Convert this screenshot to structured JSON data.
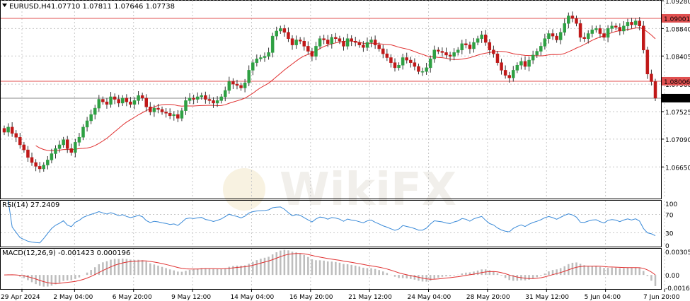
{
  "header": {
    "symbol_label": "EURUSD,H4",
    "ohlc_label": "1.07710 1.07811 1.07646 1.07738"
  },
  "watermark": {
    "text": "WikiFX"
  },
  "chart_data": [
    {
      "type": "candlestick",
      "symbol": "EURUSD",
      "timeframe": "H4",
      "last_bar": {
        "open": 1.0771,
        "high": 1.07811,
        "low": 1.07646,
        "close": 1.07738
      },
      "ylim": [
        1.0615,
        1.0928
      ],
      "y_ticks": [
        "1.09280",
        "1.08840",
        "1.08405",
        "1.07960",
        "1.07525",
        "1.07090",
        "1.06650"
      ],
      "x_ticks": [
        "29 Apr 2024",
        "2 May 04:00",
        "6 May 20:00",
        "9 May 12:00",
        "14 May 04:00",
        "16 May 20:00",
        "21 May 12:00",
        "24 May 04:00",
        "28 May 20:00",
        "31 May 12:00",
        "5 Jun 04:00",
        "7 Jun 20:00"
      ],
      "horizontal_levels": [
        {
          "value": 1.09001,
          "label": "1.09001",
          "color": "#e05050"
        },
        {
          "value": 1.08006,
          "label": "1.08006",
          "color": "#e05050"
        },
        {
          "value": 1.07738,
          "label": "1.07738",
          "color": "#888888",
          "label_bg": "#000000"
        }
      ],
      "moving_average_color": "#e03030",
      "bull_color": "#2ea043",
      "bear_color": "#c01818",
      "closes": [
        1.072,
        1.0728,
        1.0718,
        1.0712,
        1.07,
        1.0692,
        1.068,
        1.0672,
        1.0666,
        1.0662,
        1.0668,
        1.0676,
        1.0686,
        1.0694,
        1.07,
        1.0708,
        1.0694,
        1.0688,
        1.0704,
        1.0712,
        1.0728,
        1.0738,
        1.0748,
        1.0758,
        1.0772,
        1.0768,
        1.0764,
        1.0776,
        1.0772,
        1.0766,
        1.0774,
        1.0768,
        1.0764,
        1.077,
        1.0778,
        1.0774,
        1.076,
        1.0752,
        1.0758,
        1.0756,
        1.0752,
        1.075,
        1.0746,
        1.0748,
        1.0742,
        1.0754,
        1.077,
        1.0774,
        1.0772,
        1.0776,
        1.0778,
        1.0772,
        1.077,
        1.0766,
        1.077,
        1.0776,
        1.0786,
        1.08,
        1.0796,
        1.0794,
        1.079,
        1.0798,
        1.0818,
        1.083,
        1.0836,
        1.0838,
        1.084,
        1.0846,
        1.0872,
        1.088,
        1.0884,
        1.0878,
        1.0868,
        1.0858,
        1.0866,
        1.0864,
        1.0856,
        1.0848,
        1.084,
        1.0856,
        1.0868,
        1.0866,
        1.086,
        1.087,
        1.0868,
        1.0864,
        1.0856,
        1.0868,
        1.0864,
        1.0862,
        1.0858,
        1.0854,
        1.0862,
        1.0866,
        1.0858,
        1.0852,
        1.0844,
        1.0838,
        1.083,
        1.0822,
        1.0826,
        1.0838,
        1.0834,
        1.083,
        1.0824,
        1.0816,
        1.0816,
        1.0822,
        1.0836,
        1.085,
        1.0848,
        1.0846,
        1.0842,
        1.084,
        1.0846,
        1.085,
        1.086,
        1.0858,
        1.0852,
        1.0862,
        1.0868,
        1.0874,
        1.0862,
        1.085,
        1.0844,
        1.083,
        1.0818,
        1.081,
        1.0806,
        1.0818,
        1.0826,
        1.0832,
        1.0824,
        1.0834,
        1.0842,
        1.0848,
        1.0856,
        1.0868,
        1.0876,
        1.0872,
        1.0866,
        1.0878,
        1.0892,
        1.0904,
        1.09,
        1.0892,
        1.087,
        1.0868,
        1.0876,
        1.0882,
        1.0884,
        1.0876,
        1.087,
        1.0884,
        1.0888,
        1.0886,
        1.088,
        1.0888,
        1.0894,
        1.089,
        1.0896,
        1.0888,
        1.085,
        1.0812,
        1.08,
        1.07738
      ],
      "rsi": {
        "label": "RSI(14) 27.2409",
        "y_ticks": [
          "100",
          "70",
          "30",
          "0"
        ],
        "levels": [
          70,
          30
        ],
        "color": "#3a8ad8"
      },
      "macd": {
        "label": "MACD(12,26,9) -0.001423 0.000196",
        "y_ticks": [
          "0.003059",
          "0.00",
          "-0.001635"
        ],
        "ylim": [
          -0.001635,
          0.003059
        ],
        "histogram_color": "#bdbdbd",
        "signal_color": "#e03030"
      }
    }
  ]
}
